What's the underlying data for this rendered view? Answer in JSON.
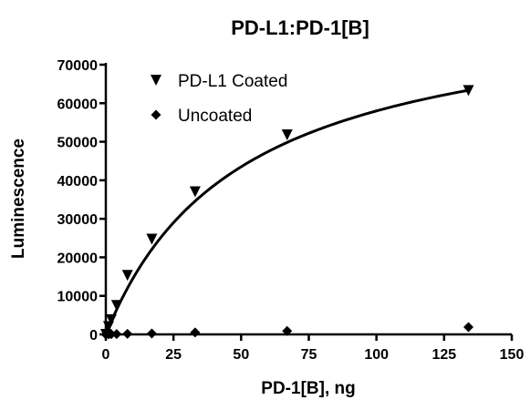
{
  "chart_data": {
    "type": "scatter",
    "title": "PD-L1:PD-1[B]",
    "xlabel": "PD-1[B], ng",
    "ylabel": "Luminescence",
    "xlim": [
      0,
      150
    ],
    "ylim": [
      0,
      70000
    ],
    "x_ticks": [
      0,
      25,
      50,
      75,
      100,
      125,
      150
    ],
    "y_ticks": [
      0,
      10000,
      20000,
      30000,
      40000,
      50000,
      60000,
      70000
    ],
    "legend_position": "top-left",
    "grid": false,
    "series": [
      {
        "name": "PD-L1 Coated",
        "marker": "triangle-down",
        "fit_curve": true,
        "fit_model": "one-site saturation",
        "fit_bmax": 87000,
        "fit_kd": 50,
        "x": [
          0,
          1,
          2,
          4,
          8,
          17,
          33,
          67,
          134
        ],
        "y": [
          0,
          2000,
          3800,
          7500,
          15300,
          24700,
          37000,
          51800,
          63300
        ]
      },
      {
        "name": "Uncoated",
        "marker": "diamond",
        "fit_curve": false,
        "x": [
          0,
          1,
          2,
          4,
          8,
          17,
          33,
          67,
          134
        ],
        "y": [
          0,
          30,
          60,
          100,
          150,
          250,
          500,
          900,
          1900
        ]
      }
    ]
  }
}
